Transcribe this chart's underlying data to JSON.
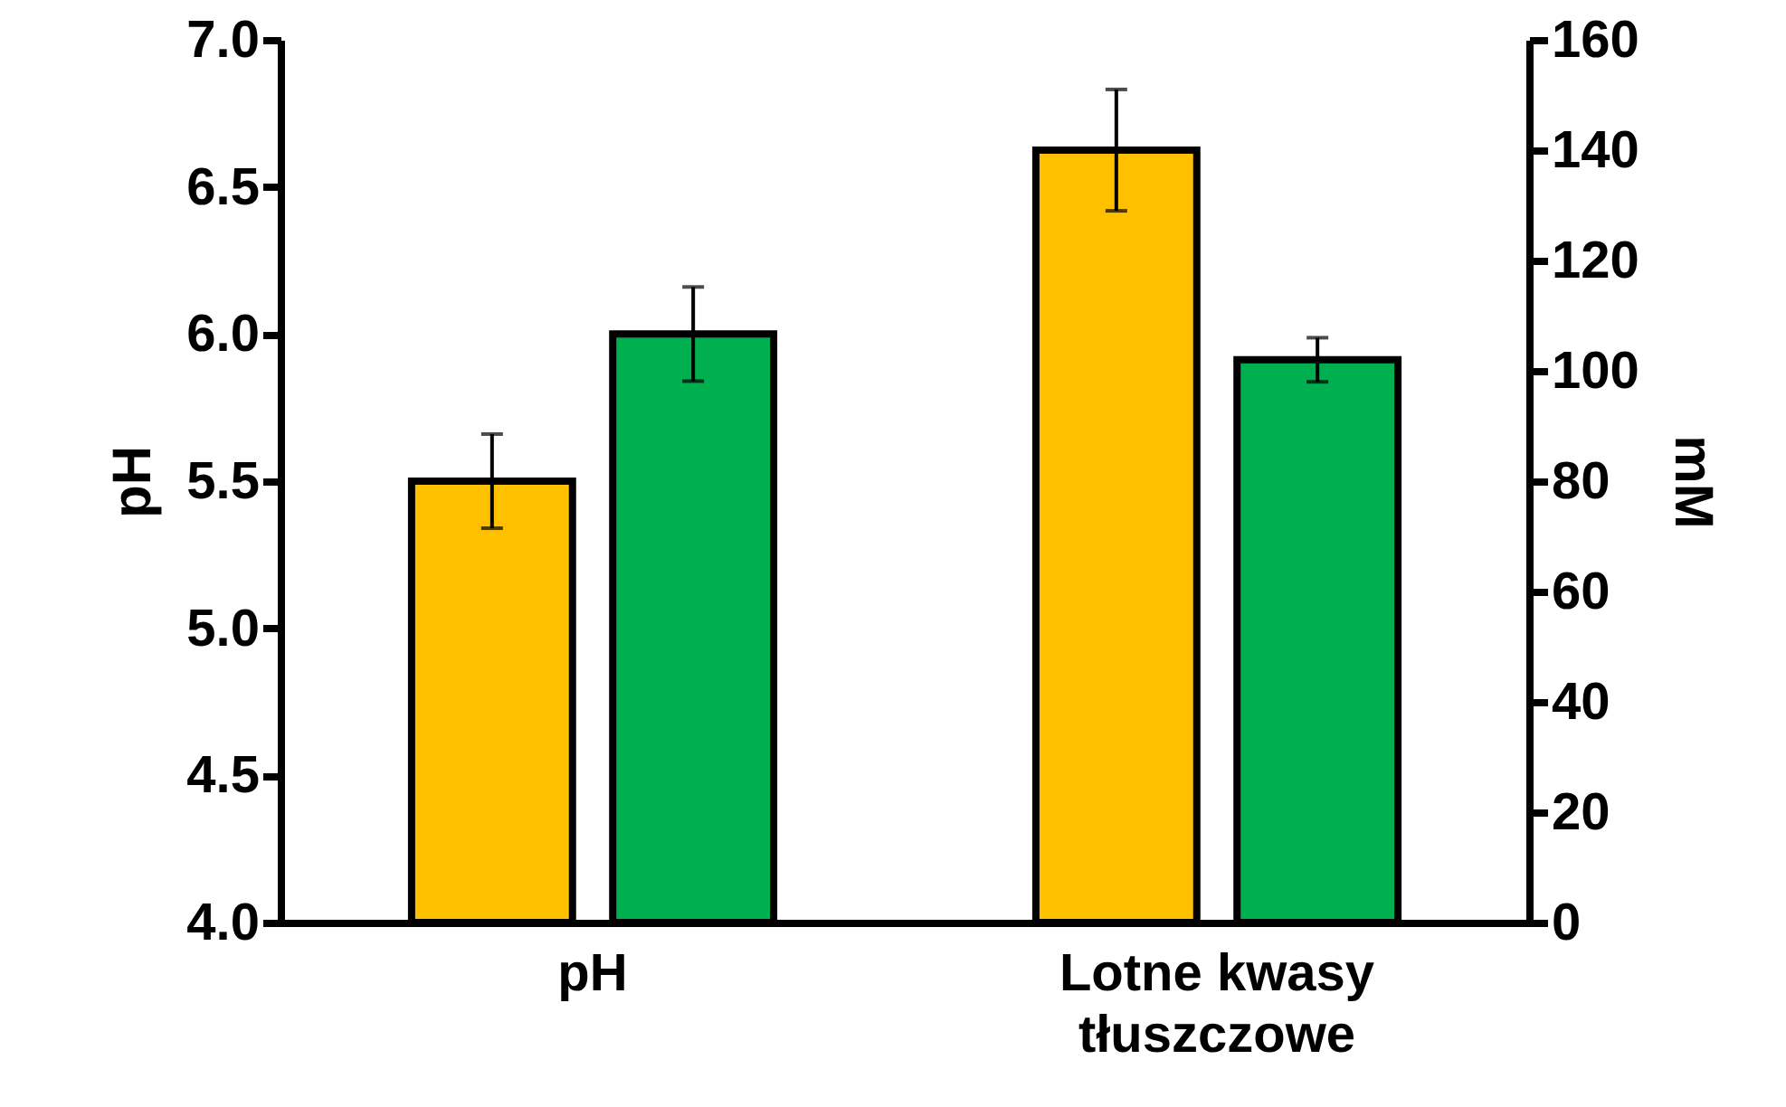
{
  "chart_data": {
    "type": "bar",
    "ylabel": "pH",
    "y2label": "mM",
    "categories": [
      "pH",
      "Lotne kwasy tłuszczowe"
    ],
    "series": [
      {
        "color": "#ffc000",
        "values": [
          5.5,
          null
        ],
        "errors": [
          0.16,
          null
        ]
      },
      {
        "color": "#00b050",
        "values": [
          6.0,
          null
        ],
        "errors": [
          0.16,
          null
        ]
      },
      {
        "color": "#ffc000",
        "axis": "y2",
        "values": [
          null,
          140
        ],
        "errors": [
          null,
          11
        ]
      },
      {
        "color": "#00b050",
        "axis": "y2",
        "values": [
          null,
          102
        ],
        "errors": [
          null,
          4
        ]
      }
    ],
    "ylim": [
      4,
      7
    ],
    "yticks": [
      {
        "value": 4,
        "label": "4.0"
      },
      {
        "value": 4.5,
        "label": "4.5"
      },
      {
        "value": 5,
        "label": "5.0"
      },
      {
        "value": 5.5,
        "label": "5.5"
      },
      {
        "value": 6,
        "label": "6.0"
      },
      {
        "value": 6.5,
        "label": "6.5"
      },
      {
        "value": 7,
        "label": "7.0"
      }
    ],
    "y2lim": [
      0,
      160
    ],
    "y2ticks": [
      0,
      20,
      40,
      60,
      80,
      100,
      120,
      140,
      160
    ],
    "grid": false
  }
}
